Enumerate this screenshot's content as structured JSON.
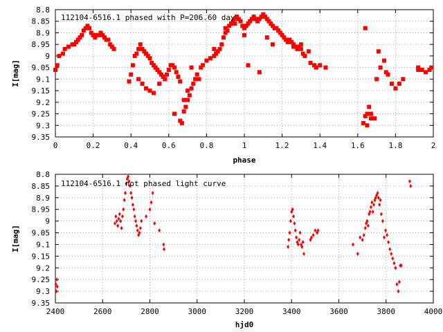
{
  "chart_data": [
    {
      "type": "scatter",
      "title": "112104-6516.1 phased with P=206.60 day",
      "xlabel": "phase",
      "ylabel": "I[mag]",
      "xlim": [
        0,
        2
      ],
      "ylim": [
        9.35,
        8.8
      ],
      "y_reversed": true,
      "grid": true,
      "xticks": [
        0,
        0.2,
        0.4,
        0.6,
        0.8,
        1,
        1.2,
        1.4,
        1.6,
        1.8,
        2
      ],
      "yticks": [
        8.8,
        8.85,
        8.9,
        8.95,
        9,
        9.05,
        9.1,
        9.15,
        9.2,
        9.25,
        9.3,
        9.35
      ],
      "xtick_labels": [
        "0",
        "0.2",
        "0.4",
        "0.6",
        "0.8",
        "1",
        "1.2",
        "1.4",
        "1.6",
        "1.8",
        "2"
      ],
      "ytick_labels": [
        "8.8",
        "8.85",
        "8.9",
        "8.95",
        "9",
        "9.05",
        "9.1",
        "9.15",
        "9.2",
        "9.25",
        "9.3",
        "9.35"
      ],
      "marker_color": "#ff0000",
      "series": [
        {
          "x": [
            0.0,
            0.01,
            0.02,
            0.04,
            0.05,
            0.07,
            0.09,
            0.1,
            0.11,
            0.12,
            0.13,
            0.14,
            0.15,
            0.16,
            0.17,
            0.18,
            0.19,
            0.2,
            0.21,
            0.22,
            0.23,
            0.24,
            0.25,
            0.26,
            0.27,
            0.28,
            0.29,
            0.3,
            0.31,
            0.39,
            0.4,
            0.41,
            0.42,
            0.43,
            0.44,
            0.45,
            0.46,
            0.47,
            0.48,
            0.49,
            0.5,
            0.51,
            0.52,
            0.53,
            0.54,
            0.55,
            0.56,
            0.57,
            0.58,
            0.59,
            0.6,
            0.61,
            0.62,
            0.63,
            0.64,
            0.65,
            0.66,
            0.67,
            0.68,
            0.69,
            0.7,
            0.71,
            0.72,
            0.73,
            0.74,
            0.75,
            0.77,
            0.78,
            0.8,
            0.82,
            0.84,
            0.85,
            0.86,
            0.87,
            0.88,
            0.89,
            0.9,
            0.91,
            0.92,
            0.93,
            0.94,
            0.95,
            0.96,
            0.97,
            0.98,
            0.99,
            1.0,
            1.01,
            1.02,
            1.03,
            1.04,
            1.05,
            1.06,
            1.07,
            1.08,
            1.09,
            1.1,
            1.11,
            1.12,
            1.13,
            1.14,
            1.15,
            1.16,
            1.17,
            1.18,
            1.19,
            1.2,
            1.21,
            1.22,
            1.23,
            1.24,
            1.25,
            1.26,
            1.27,
            1.28,
            1.29,
            1.3,
            1.31,
            1.32,
            1.35,
            1.37,
            1.38,
            1.4,
            1.43,
            1.63,
            1.64,
            1.65,
            1.66,
            1.67,
            1.69,
            1.7,
            1.72,
            1.74,
            1.76,
            1.78,
            1.8,
            1.82,
            1.84,
            1.92,
            1.94,
            1.96,
            1.98,
            1.99,
            0.44,
            0.46,
            0.48,
            0.5,
            0.52,
            0.55,
            0.58,
            0.63,
            0.66,
            0.68,
            0.7,
            0.72,
            0.76,
            0.84,
            0.9,
            0.95,
            1.0,
            1.02,
            1.08,
            1.12,
            1.15,
            1.26,
            1.3,
            1.34,
            1.64,
            1.65,
            1.67,
            1.71,
            1.75,
            1.92
          ],
          "y": [
            9.06,
            9.04,
            9.0,
            8.99,
            8.97,
            8.96,
            8.95,
            8.95,
            8.94,
            8.93,
            8.92,
            8.91,
            8.89,
            8.88,
            8.87,
            8.88,
            8.9,
            8.91,
            8.92,
            8.91,
            8.91,
            8.9,
            8.91,
            8.92,
            8.93,
            8.93,
            8.95,
            8.96,
            8.97,
            9.11,
            9.08,
            9.04,
            9.0,
            8.99,
            8.97,
            8.95,
            8.97,
            8.98,
            8.99,
            9.0,
            9.01,
            9.03,
            9.04,
            9.05,
            9.06,
            9.07,
            9.08,
            9.09,
            9.1,
            9.08,
            9.06,
            9.04,
            9.04,
            9.05,
            9.07,
            9.09,
            9.11,
            9.29,
            9.24,
            9.22,
            9.19,
            9.17,
            9.14,
            9.12,
            9.1,
            9.08,
            9.05,
            9.04,
            9.02,
            9.01,
            9.0,
            8.99,
            8.98,
            8.97,
            8.95,
            8.92,
            8.9,
            8.89,
            8.87,
            8.86,
            8.85,
            8.84,
            8.83,
            8.84,
            8.85,
            8.87,
            8.88,
            8.87,
            8.86,
            8.85,
            8.84,
            8.83,
            8.84,
            8.85,
            8.84,
            8.83,
            8.82,
            8.83,
            8.84,
            8.85,
            8.86,
            8.87,
            8.88,
            8.88,
            8.89,
            8.9,
            8.91,
            8.92,
            8.93,
            8.94,
            8.93,
            8.94,
            8.95,
            8.96,
            8.97,
            8.96,
            8.95,
            8.99,
            9.0,
            9.03,
            9.04,
            9.05,
            9.04,
            9.05,
            9.29,
            9.26,
            9.25,
            9.22,
            9.25,
            9.27,
            9.1,
            9.05,
            9.02,
            9.08,
            9.12,
            9.14,
            9.12,
            9.1,
            9.06,
            9.06,
            9.07,
            9.06,
            9.05,
            9.1,
            9.12,
            9.14,
            9.15,
            9.16,
            9.12,
            9.1,
            9.25,
            9.28,
            9.19,
            9.15,
            9.05,
            9.1,
            8.97,
            8.88,
            8.86,
            8.91,
            9.04,
            9.07,
            8.92,
            8.95,
            8.96,
            8.97,
            8.98,
            8.88,
            9.3,
            9.27,
            8.98,
            9.07,
            9.05
          ]
        }
      ]
    },
    {
      "type": "scatter",
      "title": "112104-6516.1 not phased light curve",
      "xlabel": "hjd0",
      "ylabel": "I[mag]",
      "xlim": [
        2400,
        4000
      ],
      "ylim": [
        9.35,
        8.8
      ],
      "y_reversed": true,
      "grid": true,
      "xticks": [
        2400,
        2600,
        2800,
        3000,
        3200,
        3400,
        3600,
        3800,
        4000
      ],
      "yticks": [
        8.8,
        8.85,
        8.9,
        8.95,
        9,
        9.05,
        9.1,
        9.15,
        9.2,
        9.25,
        9.3,
        9.35
      ],
      "xtick_labels": [
        "2400",
        "2600",
        "2800",
        "3000",
        "3200",
        "3400",
        "3600",
        "3800",
        "4000"
      ],
      "ytick_labels": [
        "8.8",
        "8.85",
        "8.9",
        "8.95",
        "9",
        "9.05",
        "9.1",
        "9.15",
        "9.2",
        "9.25",
        "9.3",
        "9.35"
      ],
      "marker_color": "#ff0000",
      "series": [
        {
          "x": [
            2402,
            2404,
            2406,
            2408,
            2652,
            2656,
            2660,
            2664,
            2668,
            2672,
            2676,
            2680,
            2684,
            2688,
            2692,
            2696,
            2700,
            2704,
            2708,
            2712,
            2716,
            2720,
            2724,
            2728,
            2732,
            2736,
            2740,
            2744,
            2748,
            2752,
            2756,
            2760,
            2764,
            2784,
            2800,
            2806,
            2812,
            2820,
            2840,
            2858,
            2860,
            3385,
            3388,
            3392,
            3396,
            3400,
            3404,
            3408,
            3412,
            3416,
            3420,
            3424,
            3428,
            3432,
            3436,
            3440,
            3444,
            3448,
            3452,
            3480,
            3484,
            3492,
            3500,
            3508,
            3512,
            3660,
            3680,
            3690,
            3700,
            3706,
            3712,
            3716,
            3720,
            3724,
            3728,
            3732,
            3736,
            3740,
            3744,
            3748,
            3752,
            3756,
            3760,
            3764,
            3768,
            3772,
            3776,
            3780,
            3786,
            3792,
            3798,
            3804,
            3810,
            3816,
            3822,
            3828,
            3834,
            3840,
            3846,
            3852,
            3856,
            3860,
            3864,
            3900,
            3904
          ],
          "y": [
            9.27,
            9.3,
            9.25,
            9.28,
            9.01,
            8.98,
            9.0,
            9.02,
            8.99,
            8.97,
            9.0,
            9.03,
            8.98,
            8.95,
            8.91,
            8.88,
            8.84,
            8.82,
            8.81,
            8.83,
            8.85,
            8.88,
            8.9,
            8.93,
            8.95,
            8.98,
            9.0,
            9.02,
            9.04,
            9.06,
            9.05,
            9.03,
            9.0,
            8.98,
            8.95,
            8.92,
            8.88,
            9.01,
            9.04,
            9.1,
            9.12,
            9.11,
            9.08,
            9.05,
            9.0,
            8.96,
            8.95,
            8.98,
            9.01,
            9.04,
            9.07,
            9.09,
            9.1,
            9.08,
            9.05,
            9.1,
            9.11,
            9.09,
            9.14,
            9.08,
            9.07,
            9.06,
            9.04,
            9.05,
            9.04,
            9.1,
            9.14,
            9.07,
            9.08,
            9.06,
            9.03,
            9.01,
            9.0,
            9.02,
            8.97,
            8.96,
            8.94,
            8.92,
            8.96,
            8.93,
            8.91,
            8.9,
            8.89,
            8.88,
            8.9,
            8.93,
            8.91,
            8.97,
            9.0,
            9.07,
            9.04,
            9.06,
            9.09,
            9.12,
            9.14,
            9.16,
            9.18,
            9.2,
            9.27,
            9.3,
            9.26,
            9.19,
            9.19,
            8.83,
            8.85
          ]
        }
      ]
    }
  ]
}
